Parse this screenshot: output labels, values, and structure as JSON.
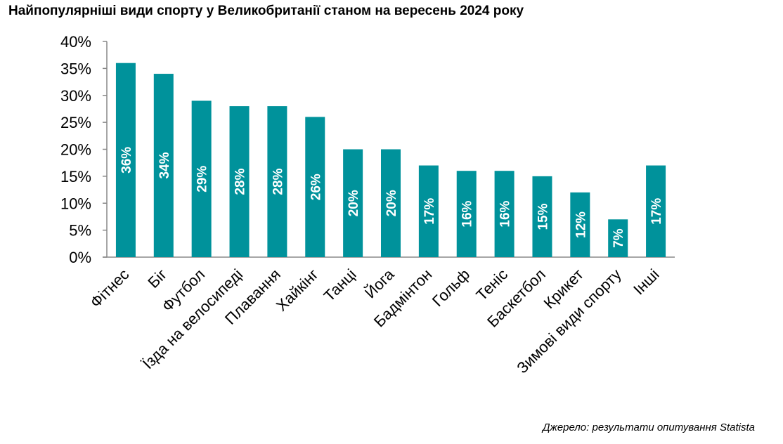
{
  "chart_data": {
    "type": "bar",
    "title": "Найпопулярніші види спорту у Великобританії станом на вересень 2024 року",
    "categories": [
      "Фітнес",
      "Біг",
      "Футбол",
      "Їзда на велосипеді",
      "Плавання",
      "Хайкінг",
      "Танці",
      "Йога",
      "Бадмінтон",
      "Гольф",
      "Теніс",
      "Баскетбол",
      "Крикет",
      "Зимові види спорту",
      "Інші"
    ],
    "values": [
      36,
      34,
      29,
      28,
      28,
      26,
      20,
      20,
      17,
      16,
      16,
      15,
      12,
      7,
      17
    ],
    "data_labels": [
      "36%",
      "34%",
      "29%",
      "28%",
      "28%",
      "26%",
      "20%",
      "20%",
      "17%",
      "16%",
      "16%",
      "15%",
      "12%",
      "7%",
      "17%"
    ],
    "yticks": [
      "0%",
      "5%",
      "10%",
      "15%",
      "20%",
      "25%",
      "30%",
      "35%",
      "40%"
    ],
    "ylim": [
      0,
      40
    ],
    "xlabel": "",
    "ylabel": "",
    "grid": false,
    "bar_color": "#00929b",
    "source": "Джерело: результати опитування Statista"
  }
}
